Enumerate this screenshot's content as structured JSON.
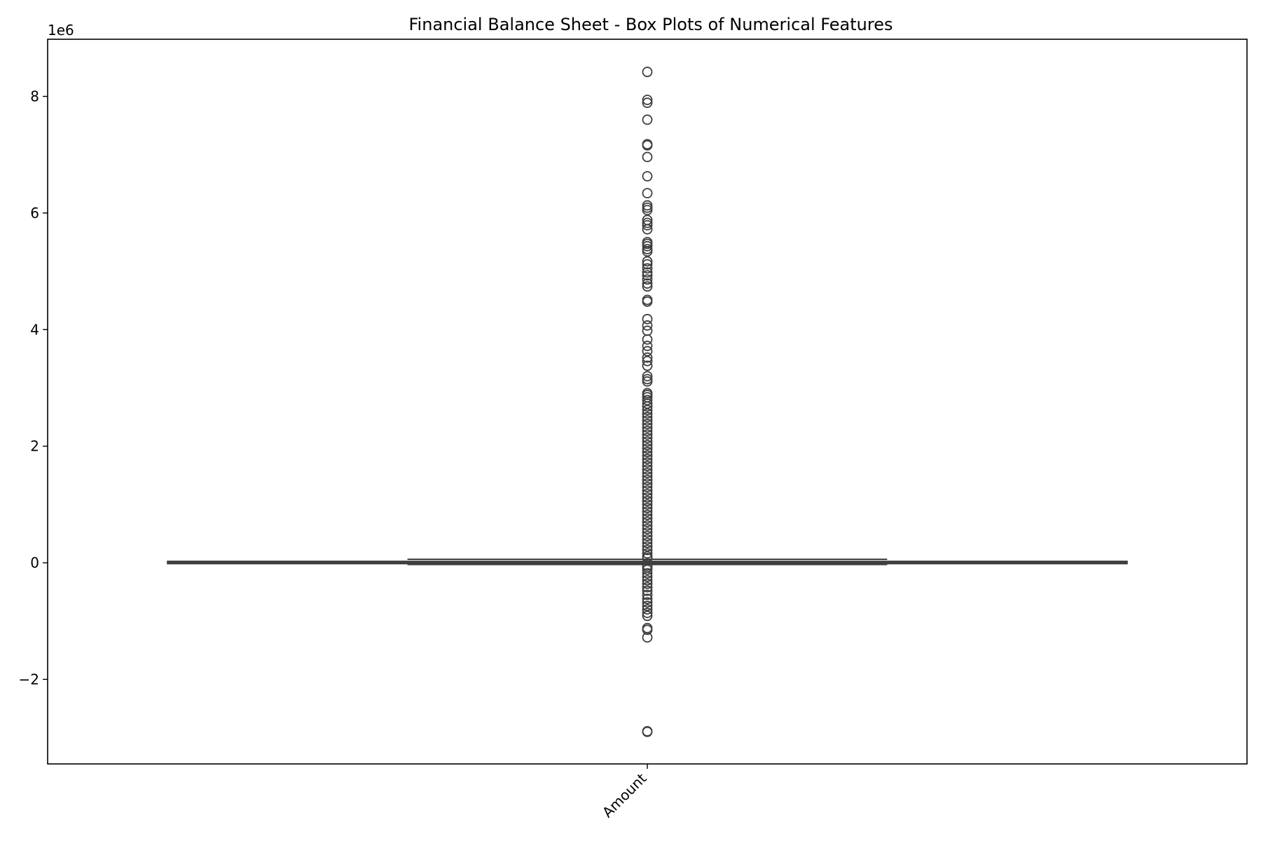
{
  "chart_data": {
    "type": "box",
    "title": "Financial Balance Sheet - Box Plots of Numerical Features",
    "xlabel": "",
    "ylabel": "",
    "categories": [
      "Amount"
    ],
    "y_offset_label": "1e6",
    "y_scale": 1000000,
    "ylim": [
      -3.45,
      8.98
    ],
    "yticks": [
      -2,
      0,
      2,
      4,
      6,
      8
    ],
    "ytick_labels": [
      "−2",
      "0",
      "2",
      "4",
      "6",
      "8"
    ],
    "grid": false,
    "legend": "none",
    "colors": {
      "box_line": "#3f3f3f",
      "axis": "#000000",
      "background": "#ffffff"
    },
    "boxes": [
      {
        "category": "Amount",
        "whisker_low": -0.03,
        "q1": -0.015,
        "median": 0.0,
        "q3": 0.025,
        "whisker_high": 0.06,
        "outliers": [
          8.42,
          7.94,
          7.89,
          7.6,
          7.18,
          7.16,
          6.96,
          6.63,
          6.34,
          6.13,
          6.09,
          6.05,
          5.88,
          5.83,
          5.79,
          5.72,
          5.5,
          5.47,
          5.43,
          5.38,
          5.34,
          5.17,
          5.12,
          5.05,
          4.98,
          4.93,
          4.86,
          4.79,
          4.74,
          4.51,
          4.48,
          4.18,
          4.07,
          3.98,
          3.83,
          3.72,
          3.63,
          3.52,
          3.46,
          3.38,
          3.2,
          3.15,
          3.11,
          2.91,
          2.88,
          2.84,
          2.79,
          2.73,
          2.68,
          2.62,
          2.56,
          2.5,
          2.44,
          2.38,
          2.32,
          2.26,
          2.2,
          2.14,
          2.08,
          2.02,
          1.96,
          1.9,
          1.84,
          1.78,
          1.72,
          1.66,
          1.6,
          1.54,
          1.48,
          1.42,
          1.36,
          1.3,
          1.24,
          1.18,
          1.12,
          1.06,
          1.0,
          0.94,
          0.88,
          0.82,
          0.76,
          0.7,
          0.64,
          0.58,
          0.52,
          0.46,
          0.4,
          0.34,
          0.28,
          0.22,
          0.16,
          0.11,
          0.08,
          -0.05,
          -0.08,
          -0.12,
          -0.18,
          -0.24,
          -0.3,
          -0.36,
          -0.42,
          -0.48,
          -0.55,
          -0.62,
          -0.68,
          -0.74,
          -0.8,
          -0.86,
          -0.91,
          -1.12,
          -1.15,
          -1.28,
          -2.89,
          -2.9
        ]
      }
    ]
  }
}
